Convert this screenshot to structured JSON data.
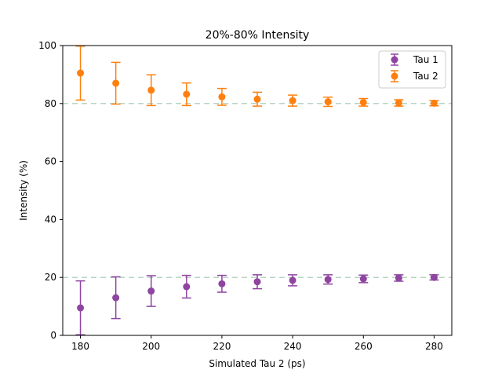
{
  "chart_data": {
    "type": "scatter",
    "title": "20%-80% Intensity",
    "xlabel": "Simulated Tau 2 (ps)",
    "ylabel": "Intensity (%)",
    "xlim": [
      175,
      285
    ],
    "ylim": [
      0,
      100
    ],
    "xticks": [
      180,
      200,
      220,
      240,
      260,
      280
    ],
    "yticks": [
      0,
      20,
      40,
      60,
      80,
      100
    ],
    "reference_lines": [
      20,
      80
    ],
    "reference_line_color": "#b8d4c4",
    "legend_position": "top-right",
    "x": [
      180,
      190,
      200,
      210,
      220,
      230,
      240,
      250,
      260,
      270,
      280
    ],
    "series": [
      {
        "name": "Tau 1",
        "color": "#8e44a0",
        "values": [
          9.5,
          13.0,
          15.3,
          16.8,
          17.8,
          18.5,
          19.0,
          19.3,
          19.5,
          19.8,
          20.0
        ],
        "errors": [
          9.3,
          7.2,
          5.3,
          3.9,
          2.9,
          2.4,
          1.9,
          1.6,
          1.3,
          1.1,
          0.9
        ]
      },
      {
        "name": "Tau 2",
        "color": "#ff7f0e",
        "values": [
          90.5,
          87.0,
          84.6,
          83.2,
          82.3,
          81.5,
          81.0,
          80.6,
          80.4,
          80.2,
          80.1
        ],
        "errors": [
          9.3,
          7.2,
          5.3,
          3.9,
          2.9,
          2.4,
          1.9,
          1.6,
          1.3,
          1.1,
          0.9
        ]
      }
    ]
  }
}
